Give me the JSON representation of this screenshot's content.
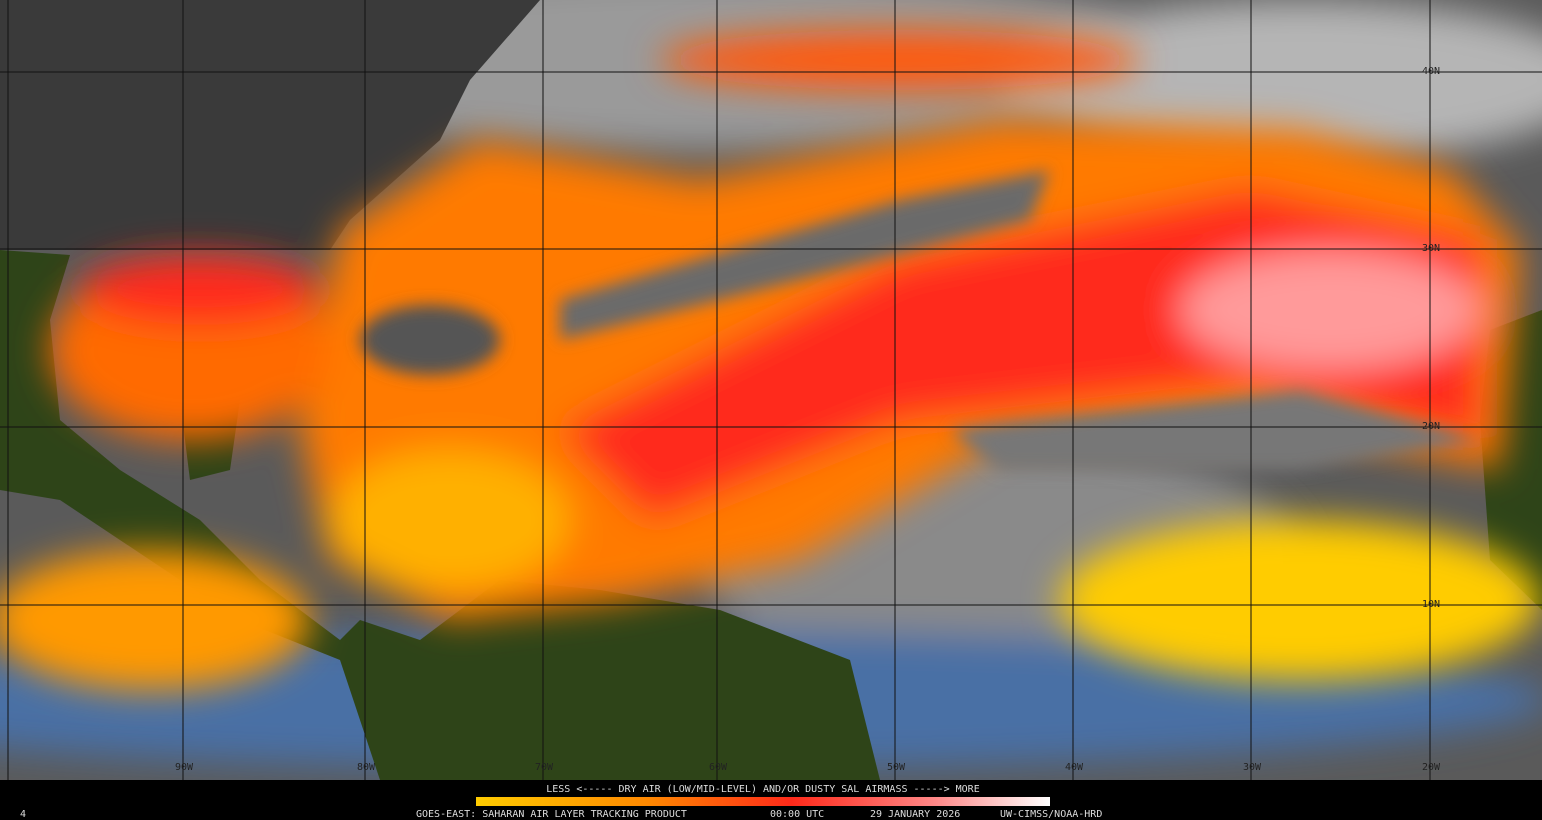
{
  "map": {
    "latitude_labels": [
      "40N",
      "30N",
      "20N",
      "10N"
    ],
    "longitude_labels": [
      "90W",
      "80W",
      "70W",
      "60W",
      "50W",
      "40W",
      "30W",
      "20W"
    ]
  },
  "legend": {
    "text": "LESS <----- DRY AIR (LOW/MID-LEVEL) AND/OR DUSTY SAL AIRMASS -----> MORE"
  },
  "footer": {
    "product": "GOES-EAST: SAHARAN AIR LAYER TRACKING PRODUCT",
    "time": "00:00 UTC",
    "date": "29 JANUARY 2026",
    "credit": "UW-CIMSS/NOAA-HRD"
  },
  "frame_number": "4"
}
